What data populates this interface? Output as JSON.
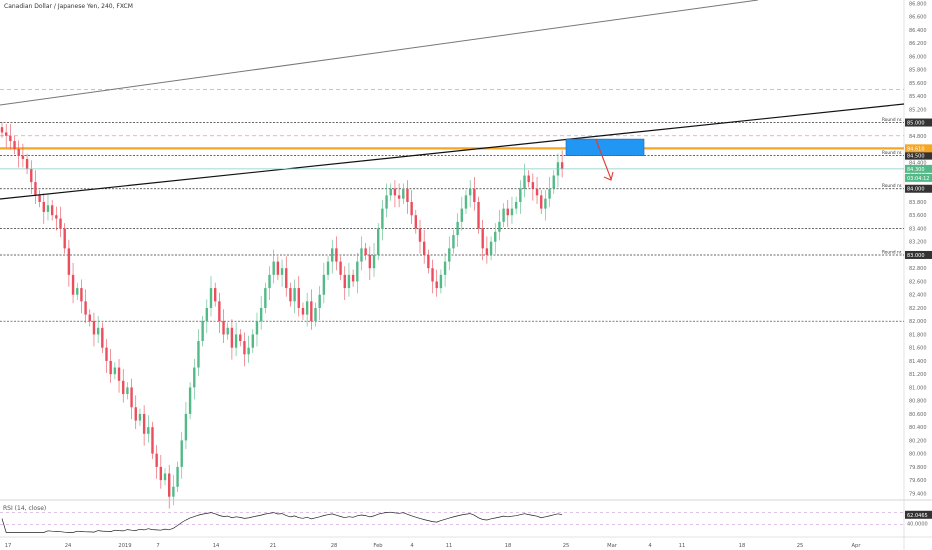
{
  "header": {
    "title": "Canadian Dollar / Japanese Yen, 240, FXCM"
  },
  "rsi": {
    "label": "RSI (14, close)",
    "value": "62.0465",
    "levels": [
      70,
      30
    ]
  },
  "colors": {
    "up": "#53b987",
    "down": "#eb4d5c",
    "accent": "#f5a623",
    "zone": "#2196f3",
    "arrow": "#e53935",
    "level_line": "#333333",
    "dashed_red": "#ef9a9a",
    "current_price_line": "#80cbc4"
  },
  "chart_data": {
    "type": "candlestick",
    "title": "Canadian Dollar / Japanese Yen, 240, FXCM",
    "ylim": [
      79.3,
      86.85
    ],
    "y_ticks": [
      "86.800",
      "86.600",
      "86.400",
      "86.200",
      "86.000",
      "85.800",
      "85.600",
      "85.400",
      "85.200",
      "85.000",
      "84.800",
      "84.600",
      "84.400",
      "84.200",
      "84.000",
      "83.800",
      "83.600",
      "83.400",
      "83.200",
      "83.000",
      "82.800",
      "82.600",
      "82.400",
      "82.200",
      "82.000",
      "81.800",
      "81.600",
      "81.400",
      "81.200",
      "81.000",
      "80.800",
      "80.600",
      "80.400",
      "80.200",
      "80.000",
      "79.800",
      "79.600",
      "79.400"
    ],
    "x_ticks": [
      "17",
      "24",
      "2019",
      "7",
      "14",
      "21",
      "28",
      "Feb",
      "4",
      "11",
      "18",
      "25",
      "Mar",
      "4",
      "11",
      "18",
      "25",
      "Apr"
    ],
    "horizontal_levels": [
      {
        "price": 85.0,
        "style": "dotted",
        "label": "Round nr.",
        "price_label": "85.000"
      },
      {
        "price": 84.5,
        "style": "dotted",
        "label": "Round nr.",
        "price_label": "84.500"
      },
      {
        "price": 84.0,
        "style": "dotted",
        "label": "Round nr.",
        "price_label": "84.000"
      },
      {
        "price": 83.0,
        "style": "dotted",
        "label": "Round nr.",
        "price_label": "83.000"
      },
      {
        "price": 83.4,
        "style": "dotted"
      },
      {
        "price": 82.0,
        "style": "dotted"
      },
      {
        "price": 85.5,
        "style": "dashed-red"
      },
      {
        "price": 84.8,
        "style": "dashed-red"
      },
      {
        "price": 84.61,
        "style": "orange",
        "price_label": "84.610"
      }
    ],
    "current_price": "84.300",
    "countdown": "03:04:12",
    "trendlines": [
      "upper channel line",
      "rising support line"
    ],
    "zone": {
      "price_high": 84.75,
      "price_low": 84.5
    },
    "candles_close": [
      84.85,
      84.8,
      84.72,
      84.6,
      84.5,
      84.45,
      84.3,
      84.1,
      83.9,
      83.8,
      83.65,
      83.75,
      83.6,
      83.55,
      83.4,
      83.1,
      82.7,
      82.4,
      82.5,
      82.3,
      82.1,
      82.0,
      81.8,
      81.9,
      81.6,
      81.4,
      81.2,
      81.3,
      81.1,
      80.9,
      81.0,
      80.7,
      80.5,
      80.6,
      80.3,
      80.4,
      80.0,
      79.8,
      79.6,
      79.7,
      79.35,
      79.5,
      79.8,
      80.2,
      80.6,
      81.0,
      81.3,
      81.7,
      82.0,
      82.2,
      82.5,
      82.3,
      82.0,
      81.8,
      81.9,
      81.6,
      81.8,
      81.7,
      81.5,
      81.6,
      81.8,
      82.0,
      82.2,
      82.5,
      82.7,
      82.9,
      82.7,
      82.8,
      82.5,
      82.3,
      82.5,
      82.2,
      82.1,
      82.3,
      82.0,
      82.2,
      82.4,
      82.7,
      82.9,
      83.1,
      82.9,
      82.7,
      82.5,
      82.7,
      82.6,
      82.9,
      83.1,
      83.0,
      82.8,
      83.0,
      83.4,
      83.7,
      83.9,
      84.0,
      83.9,
      83.85,
      84.0,
      83.8,
      83.6,
      83.4,
      83.2,
      83.0,
      82.8,
      82.6,
      82.5,
      82.7,
      82.9,
      83.1,
      83.3,
      83.5,
      83.7,
      83.9,
      84.0,
      83.8,
      83.4,
      83.1,
      83.0,
      83.2,
      83.35,
      83.5,
      83.7,
      83.6,
      83.7,
      83.8,
      84.0,
      84.2,
      84.1,
      84.0,
      83.9,
      83.7,
      83.85,
      84.0,
      84.2,
      84.4,
      84.3
    ]
  }
}
